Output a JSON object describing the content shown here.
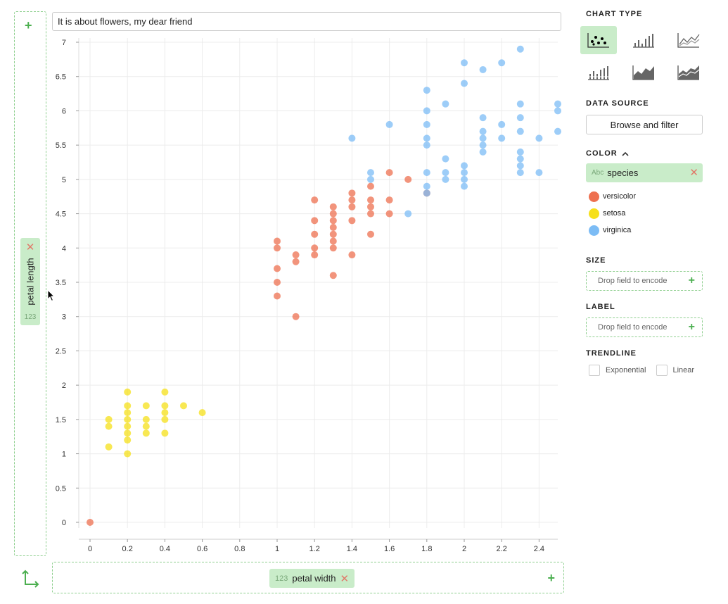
{
  "title_input": {
    "value": "It is about flowers, my dear friend"
  },
  "y_encoding": {
    "type_badge": "123",
    "field": "petal length",
    "remove_icon": "close-icon"
  },
  "x_encoding": {
    "type_badge": "123",
    "field": "petal width",
    "remove_icon": "close-icon"
  },
  "panel": {
    "chart_type": {
      "title": "CHART TYPE",
      "options": [
        {
          "icon": "scatter-chart-icon",
          "active": true
        },
        {
          "icon": "bar-chart-icon",
          "active": false
        },
        {
          "icon": "line-chart-icon",
          "active": false
        },
        {
          "icon": "stacked-bar-chart-icon",
          "active": false
        },
        {
          "icon": "area-chart-icon",
          "active": false
        },
        {
          "icon": "stacked-area-chart-icon",
          "active": false
        }
      ]
    },
    "data_source": {
      "title": "DATA SOURCE",
      "button": "Browse and filter"
    },
    "color": {
      "title": "COLOR",
      "field_type": "Abc",
      "field": "species",
      "legend": [
        {
          "label": "versicolor",
          "color": "#ee7050"
        },
        {
          "label": "setosa",
          "color": "#f6e01a"
        },
        {
          "label": "virginica",
          "color": "#7cbcf5"
        }
      ]
    },
    "size": {
      "title": "SIZE",
      "placeholder": "Drop field to encode"
    },
    "label": {
      "title": "LABEL",
      "placeholder": "Drop field to encode"
    },
    "trendline": {
      "title": "TRENDLINE",
      "options": [
        "Exponential",
        "Linear"
      ]
    }
  },
  "chart_data": {
    "type": "scatter",
    "xlim": [
      0,
      2.5
    ],
    "ylim": [
      0,
      7
    ],
    "x_ticks": [
      "0",
      "0.2",
      "0.4",
      "0.6",
      "0.8",
      "1",
      "1.2",
      "1.4",
      "1.6",
      "1.8",
      "2",
      "2.2",
      "2.4"
    ],
    "y_ticks": [
      "0",
      "0.5",
      "1",
      "1.5",
      "2",
      "2.5",
      "3",
      "3.5",
      "4",
      "4.5",
      "5",
      "5.5",
      "6",
      "6.5",
      "7"
    ],
    "grid": true,
    "series": [
      {
        "name": "setosa",
        "color": "#f6e01a",
        "points": [
          [
            0.1,
            1.1
          ],
          [
            0.1,
            1.4
          ],
          [
            0.1,
            1.5
          ],
          [
            0.2,
            1.0
          ],
          [
            0.2,
            1.2
          ],
          [
            0.2,
            1.3
          ],
          [
            0.2,
            1.4
          ],
          [
            0.2,
            1.5
          ],
          [
            0.2,
            1.6
          ],
          [
            0.2,
            1.7
          ],
          [
            0.2,
            1.9
          ],
          [
            0.3,
            1.3
          ],
          [
            0.3,
            1.4
          ],
          [
            0.3,
            1.5
          ],
          [
            0.3,
            1.7
          ],
          [
            0.4,
            1.3
          ],
          [
            0.4,
            1.5
          ],
          [
            0.4,
            1.6
          ],
          [
            0.4,
            1.7
          ],
          [
            0.4,
            1.9
          ],
          [
            0.5,
            1.7
          ],
          [
            0.6,
            1.6
          ]
        ]
      },
      {
        "name": "versicolor",
        "color": "#ee7050",
        "points": [
          [
            0,
            0
          ],
          [
            1.0,
            3.3
          ],
          [
            1.0,
            3.5
          ],
          [
            1.0,
            3.7
          ],
          [
            1.0,
            4.0
          ],
          [
            1.0,
            4.1
          ],
          [
            1.1,
            3.0
          ],
          [
            1.1,
            3.8
          ],
          [
            1.1,
            3.9
          ],
          [
            1.2,
            3.9
          ],
          [
            1.2,
            4.0
          ],
          [
            1.2,
            4.2
          ],
          [
            1.2,
            4.4
          ],
          [
            1.2,
            4.7
          ],
          [
            1.3,
            3.6
          ],
          [
            1.3,
            4.0
          ],
          [
            1.3,
            4.1
          ],
          [
            1.3,
            4.2
          ],
          [
            1.3,
            4.3
          ],
          [
            1.3,
            4.4
          ],
          [
            1.3,
            4.5
          ],
          [
            1.3,
            4.6
          ],
          [
            1.4,
            3.9
          ],
          [
            1.4,
            4.4
          ],
          [
            1.4,
            4.6
          ],
          [
            1.4,
            4.7
          ],
          [
            1.4,
            4.8
          ],
          [
            1.5,
            4.2
          ],
          [
            1.5,
            4.5
          ],
          [
            1.5,
            4.6
          ],
          [
            1.5,
            4.7
          ],
          [
            1.5,
            4.9
          ],
          [
            1.6,
            4.5
          ],
          [
            1.6,
            4.7
          ],
          [
            1.6,
            5.1
          ],
          [
            1.7,
            5.0
          ],
          [
            1.8,
            4.8
          ]
        ]
      },
      {
        "name": "virginica",
        "color": "#7cbcf5",
        "points": [
          [
            1.4,
            5.6
          ],
          [
            1.5,
            5.0
          ],
          [
            1.5,
            5.1
          ],
          [
            1.6,
            5.8
          ],
          [
            1.7,
            4.5
          ],
          [
            1.8,
            4.8
          ],
          [
            1.8,
            4.9
          ],
          [
            1.8,
            5.1
          ],
          [
            1.8,
            5.5
          ],
          [
            1.8,
            5.6
          ],
          [
            1.8,
            5.8
          ],
          [
            1.8,
            6.0
          ],
          [
            1.8,
            6.3
          ],
          [
            1.9,
            5.0
          ],
          [
            1.9,
            5.1
          ],
          [
            1.9,
            5.3
          ],
          [
            1.9,
            6.1
          ],
          [
            2.0,
            4.9
          ],
          [
            2.0,
            5.0
          ],
          [
            2.0,
            5.1
          ],
          [
            2.0,
            5.2
          ],
          [
            2.0,
            6.4
          ],
          [
            2.0,
            6.7
          ],
          [
            2.1,
            5.4
          ],
          [
            2.1,
            5.5
          ],
          [
            2.1,
            5.6
          ],
          [
            2.1,
            5.7
          ],
          [
            2.1,
            5.9
          ],
          [
            2.1,
            6.6
          ],
          [
            2.2,
            5.6
          ],
          [
            2.2,
            5.8
          ],
          [
            2.2,
            6.7
          ],
          [
            2.3,
            5.1
          ],
          [
            2.3,
            5.2
          ],
          [
            2.3,
            5.3
          ],
          [
            2.3,
            5.4
          ],
          [
            2.3,
            5.7
          ],
          [
            2.3,
            5.9
          ],
          [
            2.3,
            6.1
          ],
          [
            2.3,
            6.9
          ],
          [
            2.4,
            5.1
          ],
          [
            2.4,
            5.6
          ],
          [
            2.5,
            5.7
          ],
          [
            2.5,
            6.0
          ],
          [
            2.5,
            6.1
          ]
        ]
      }
    ]
  }
}
